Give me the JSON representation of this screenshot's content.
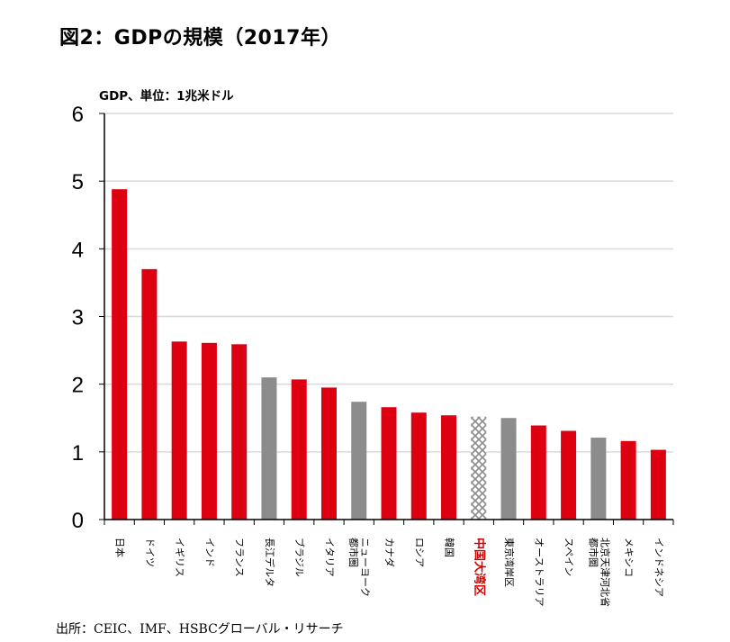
{
  "title": "図2：GDPの規模（2017年）",
  "unit_label": "GDP、単位：1兆米ドル",
  "source": "出所：CEIC、IMF、HSBCグローバル・リサーチ",
  "colors": {
    "country": "#dd0011",
    "region": "#8c8c8c",
    "highlight": "#cc0000",
    "grid": "#d9d9d9",
    "axis": "#000000"
  },
  "chart_data": {
    "type": "bar",
    "title": "図2：GDPの規模（2017年）",
    "ylabel": "GDP、単位：1兆米ドル",
    "xlabel": "",
    "ylim": [
      0,
      6
    ],
    "yticks": [
      0,
      1,
      2,
      3,
      4,
      5,
      6
    ],
    "grid": true,
    "categories": [
      "日本",
      "ドイツ",
      "イギリス",
      "インド",
      "フランス",
      "長江デルタ",
      "ブラジル",
      "イタリア",
      "ニューヨーク都市圏",
      "カナダ",
      "ロシア",
      "韓国",
      "中国大湾区",
      "東京湾岸区",
      "オーストラリア",
      "スペイン",
      "北京天津河北省都市圏",
      "メキシコ",
      "インドネシア"
    ],
    "category_lines": [
      [
        "日本"
      ],
      [
        "ドイツ"
      ],
      [
        "イギリス"
      ],
      [
        "インド"
      ],
      [
        "フランス"
      ],
      [
        "長江デルタ"
      ],
      [
        "ブラジル"
      ],
      [
        "イタリア"
      ],
      [
        "ニューヨーク",
        "都市圏"
      ],
      [
        "カナダ"
      ],
      [
        "ロシア"
      ],
      [
        "韓国"
      ],
      [
        "中国大湾区"
      ],
      [
        "東京湾岸区"
      ],
      [
        "オーストラリア"
      ],
      [
        "スペイン"
      ],
      [
        "北京天津河北省",
        "都市圏"
      ],
      [
        "メキシコ"
      ],
      [
        "インドネシア"
      ]
    ],
    "values": [
      4.88,
      3.7,
      2.63,
      2.61,
      2.59,
      2.1,
      2.07,
      1.95,
      1.74,
      1.66,
      1.58,
      1.54,
      1.52,
      1.5,
      1.39,
      1.31,
      1.21,
      1.16,
      1.03
    ],
    "kinds": [
      "country",
      "country",
      "country",
      "country",
      "country",
      "region",
      "country",
      "country",
      "region",
      "country",
      "country",
      "country",
      "highlight",
      "region",
      "country",
      "country",
      "region",
      "country",
      "country"
    ]
  }
}
